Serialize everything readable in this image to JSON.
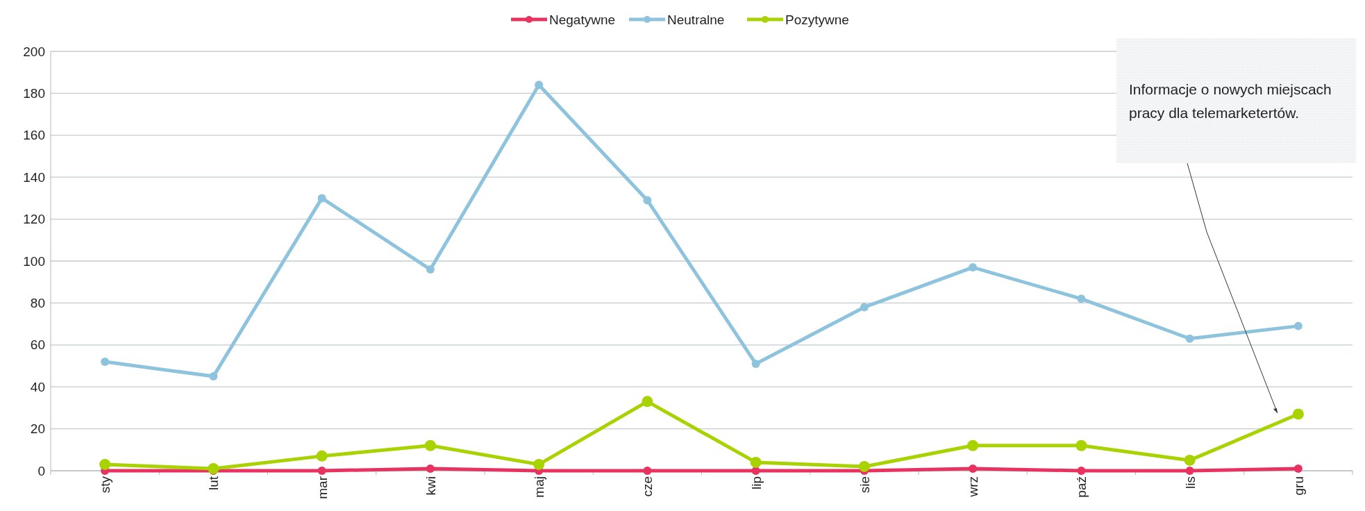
{
  "chart_data": {
    "type": "line",
    "categories": [
      "sty",
      "lut",
      "mar",
      "kwi",
      "maj",
      "cze",
      "lip",
      "sie",
      "wrz",
      "paź",
      "lis",
      "gru"
    ],
    "series": [
      {
        "name": "Negatywne",
        "color": "#e8325f",
        "values": [
          0,
          0,
          0,
          1,
          0,
          0,
          0,
          0,
          1,
          0,
          0,
          1
        ]
      },
      {
        "name": "Neutralne",
        "color": "#8ec3de",
        "values": [
          52,
          45,
          130,
          96,
          184,
          129,
          51,
          78,
          97,
          82,
          63,
          69
        ]
      },
      {
        "name": "Pozytywne",
        "color": "#a8d200",
        "values": [
          3,
          1,
          7,
          12,
          3,
          33,
          4,
          2,
          12,
          12,
          5,
          27
        ]
      }
    ],
    "ylim": [
      0,
      200
    ],
    "yticks": [
      0,
      20,
      40,
      60,
      80,
      100,
      120,
      140,
      160,
      180,
      200
    ],
    "grid": "y",
    "legend": "top",
    "marker": "circle",
    "line_style": "solid",
    "annotations": [
      "Informacje o nowych miejscach pracy dla telemarketertów."
    ]
  }
}
